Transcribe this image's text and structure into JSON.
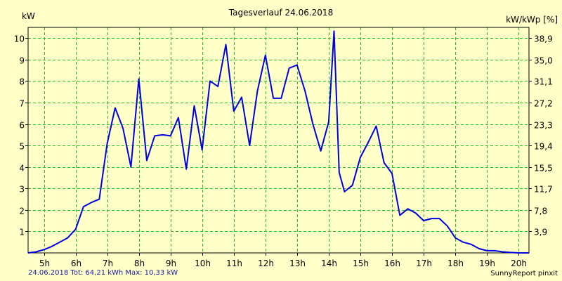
{
  "chart_data": {
    "type": "line",
    "title": "Tagesverlauf 24.06.2018",
    "ylabel": "kW",
    "ylabel_right": "kW/kWp [%]",
    "ylim": [
      0,
      10.5
    ],
    "xlim": [
      4.5,
      20.33
    ],
    "x_ticks": [
      5,
      6,
      7,
      8,
      9,
      10,
      11,
      12,
      13,
      14,
      15,
      16,
      17,
      18,
      19,
      20
    ],
    "x_tick_labels": [
      "5h",
      "6h",
      "7h",
      "8h",
      "9h",
      "10h",
      "11h",
      "12h",
      "13h",
      "14h",
      "15h",
      "16h",
      "17h",
      "18h",
      "19h",
      "20h"
    ],
    "y_ticks": [
      1,
      2,
      3,
      4,
      5,
      6,
      7,
      8,
      9,
      10
    ],
    "y_tick_labels": [
      "1",
      "2",
      "3",
      "4",
      "5",
      "6",
      "7",
      "8",
      "9",
      "10"
    ],
    "y_right_ticks": [
      1,
      2,
      3,
      4,
      5,
      6,
      7,
      8,
      9,
      10
    ],
    "y_right_tick_labels": [
      "3,9",
      "7,8",
      "11,7",
      "15,5",
      "19,4",
      "23,3",
      "27,2",
      "31,1",
      "35,0",
      "38,9"
    ],
    "grid": true,
    "series": [
      {
        "color": "#0000e0",
        "x": [
          4.5,
          4.75,
          5.0,
          5.25,
          5.5,
          5.75,
          6.0,
          6.25,
          6.5,
          6.75,
          7.0,
          7.25,
          7.5,
          7.75,
          8.0,
          8.25,
          8.5,
          8.75,
          9.0,
          9.25,
          9.5,
          9.75,
          10.0,
          10.25,
          10.5,
          10.75,
          11.0,
          11.25,
          11.5,
          11.75,
          12.0,
          12.25,
          12.5,
          12.75,
          13.0,
          13.25,
          13.5,
          13.75,
          14.0,
          14.17,
          14.33,
          14.5,
          14.75,
          15.0,
          15.25,
          15.5,
          15.75,
          16.0,
          16.25,
          16.5,
          16.75,
          17.0,
          17.25,
          17.5,
          17.75,
          18.0,
          18.25,
          18.5,
          18.75,
          19.0,
          19.25,
          19.5,
          19.75,
          20.0,
          20.33
        ],
        "values": [
          0.0,
          0.05,
          0.15,
          0.3,
          0.5,
          0.7,
          1.1,
          2.15,
          2.35,
          2.5,
          5.1,
          6.75,
          5.8,
          4.0,
          8.1,
          4.3,
          5.45,
          5.5,
          5.45,
          6.3,
          3.9,
          6.85,
          4.8,
          8.0,
          7.75,
          9.7,
          6.6,
          7.25,
          5.0,
          7.55,
          9.2,
          7.2,
          7.2,
          8.6,
          8.75,
          7.55,
          6.0,
          4.75,
          6.1,
          10.33,
          3.75,
          2.85,
          3.15,
          4.45,
          5.15,
          5.9,
          4.2,
          3.7,
          1.75,
          2.05,
          1.85,
          1.5,
          1.6,
          1.6,
          1.25,
          0.7,
          0.5,
          0.4,
          0.2,
          0.1,
          0.1,
          0.05,
          0.02,
          0.0,
          0.0
        ]
      }
    ]
  },
  "footer": {
    "info": "24.06.2018 Tot: 64,21 kWh Max: 10,33 kW",
    "brand": "SunnyReport pinxit"
  }
}
